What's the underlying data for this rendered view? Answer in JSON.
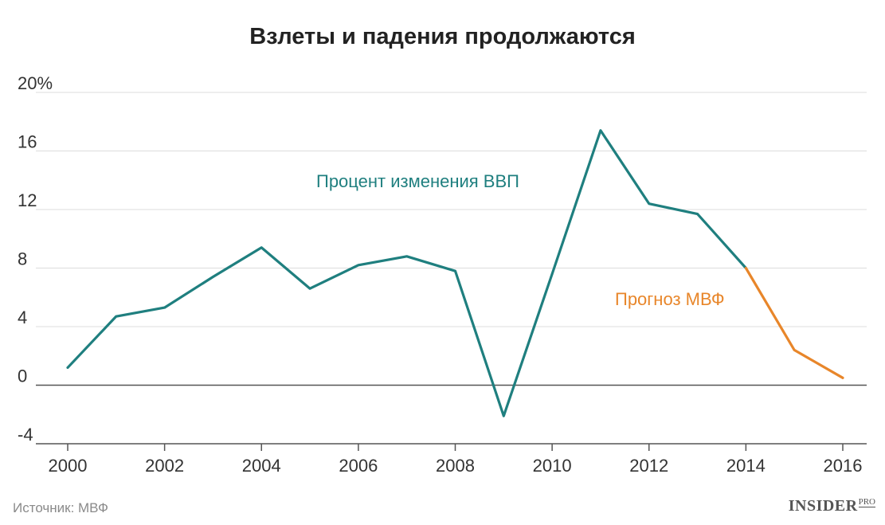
{
  "chart_data": {
    "type": "line",
    "title": "Взлеты и падения продолжаются",
    "x": [
      2000,
      2001,
      2002,
      2003,
      2004,
      2005,
      2006,
      2007,
      2008,
      2009,
      2010,
      2011,
      2012,
      2013,
      2014,
      2015,
      2016
    ],
    "series": [
      {
        "name": "Процент изменения ВВП",
        "x": [
          2000,
          2001,
          2002,
          2003,
          2004,
          2005,
          2006,
          2007,
          2008,
          2009,
          2010,
          2011,
          2012,
          2013,
          2014
        ],
        "values": [
          1.2,
          4.7,
          5.3,
          7.4,
          9.4,
          6.6,
          8.2,
          8.8,
          7.8,
          -2.1,
          7.6,
          17.4,
          12.4,
          11.7,
          8.0
        ],
        "color": "#1f7f7f"
      },
      {
        "name": "Прогноз МВФ",
        "x": [
          2014,
          2015,
          2016
        ],
        "values": [
          8.0,
          2.4,
          0.5
        ],
        "color": "#e8862a"
      }
    ],
    "xlim": [
      2000,
      2016
    ],
    "ylim": [
      -4,
      20
    ],
    "yticks": [
      -4,
      0,
      4,
      8,
      12,
      16,
      20
    ],
    "ytick_labels": [
      "-4",
      "0",
      "4",
      "8",
      "12",
      "16",
      "20%"
    ],
    "xticks": [
      2000,
      2002,
      2004,
      2006,
      2008,
      2010,
      2012,
      2014,
      2016
    ],
    "xtick_labels": [
      "2000",
      "2002",
      "2004",
      "2006",
      "2008",
      "2010",
      "2012",
      "2014",
      "2016"
    ],
    "grid": true,
    "annotations": [
      "Процент изменения ВВП",
      "Прогноз МВФ"
    ]
  },
  "source": "Источник: МВФ",
  "logo": {
    "main": "INSIDER",
    "sup": "PRO"
  },
  "colors": {
    "grid": "#dcdcdc",
    "zero_line": "#555555",
    "axis": "#555555"
  }
}
